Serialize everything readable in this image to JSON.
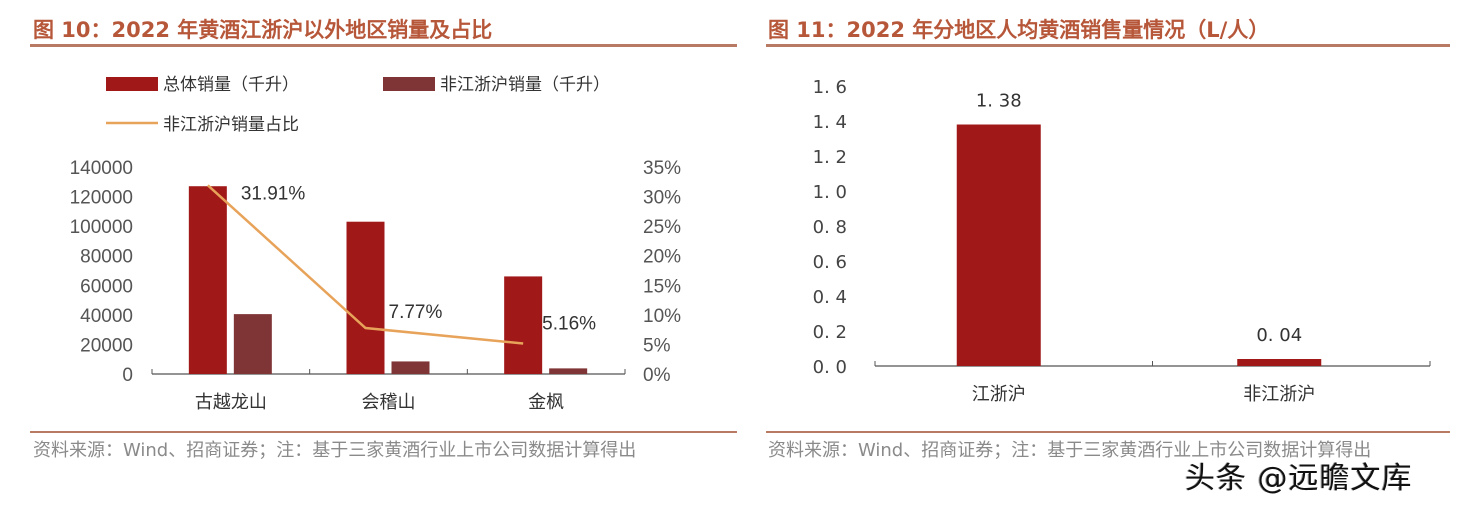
{
  "charts": [
    {
      "title": "图 10：2022 年黄酒江浙沪以外地区销量及占比",
      "source": "资料来源：Wind、招商证券；注：基于三家黄酒行业上市公司数据计算得出"
    },
    {
      "title": "图 11：2022 年分地区人均黄酒销售量情况（L/人）",
      "source": "资料来源：Wind、招商证券；注：基于三家黄酒行业上市公司数据计算得出"
    }
  ],
  "watermark": "头条 @远瞻文库",
  "chart_data": [
    {
      "type": "bar+line",
      "categories": [
        "古越龙山",
        "会稽山",
        "金枫"
      ],
      "series": [
        {
          "name": "总体销量（千升）",
          "type": "bar",
          "axis": "left",
          "color": "#a01818",
          "values": [
            127000,
            103000,
            66000
          ]
        },
        {
          "name": "非江浙沪销量（千升）",
          "type": "bar",
          "axis": "left",
          "color": "#7f3535",
          "values": [
            40500,
            8500,
            3800
          ]
        },
        {
          "name": "非江浙沪销量占比",
          "type": "line",
          "axis": "right",
          "color": "#e8a35a",
          "values": [
            31.91,
            7.77,
            5.16
          ],
          "labels": [
            "31.91%",
            "7.77%",
            "5.16%"
          ]
        }
      ],
      "ylim": [
        0,
        140000
      ],
      "yticks": [
        "0",
        "20000",
        "40000",
        "60000",
        "80000",
        "100000",
        "120000",
        "140000"
      ],
      "y2lim": [
        0,
        35
      ],
      "y2ticks": [
        "0%",
        "5%",
        "10%",
        "15%",
        "20%",
        "25%",
        "30%",
        "35%"
      ],
      "legend": "top",
      "grid": false
    },
    {
      "type": "bar",
      "categories": [
        "江浙沪",
        "非江浙沪"
      ],
      "values": [
        1.38,
        0.04
      ],
      "labels": [
        "1. 38",
        "0. 04"
      ],
      "color": "#a01818",
      "ylim": [
        0,
        1.6
      ],
      "yticks": [
        "0. 0",
        "0. 2",
        "0. 4",
        "0. 6",
        "0. 8",
        "1. 0",
        "1. 2",
        "1. 4",
        "1. 6"
      ],
      "grid": false
    }
  ]
}
